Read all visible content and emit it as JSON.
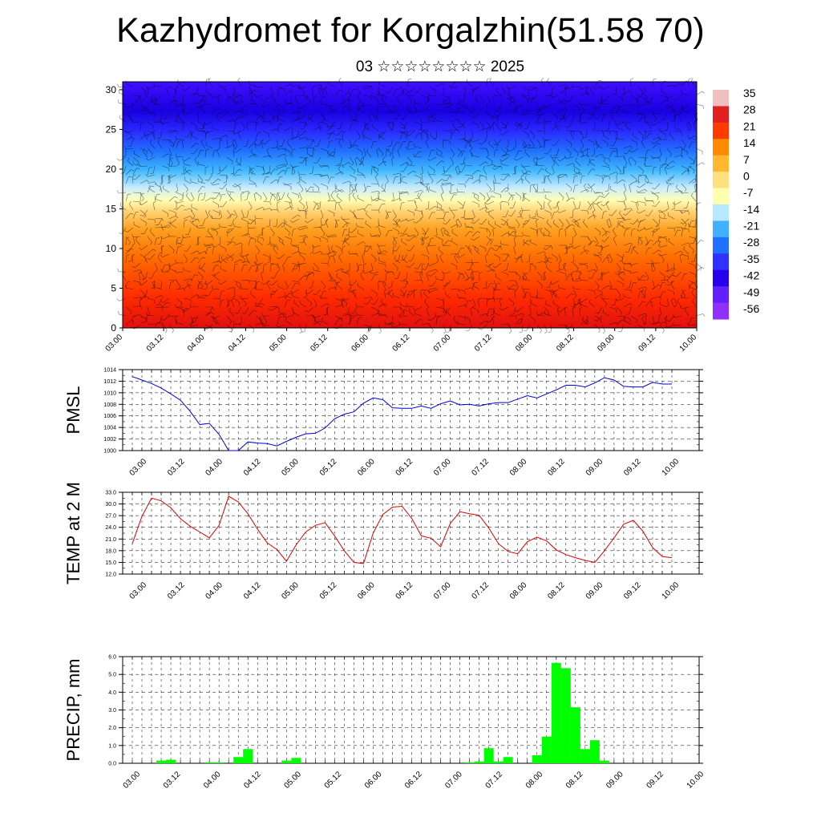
{
  "title": "Kazhydromet for Korgalzhin(51.58 70)",
  "subtitle": "03 ☆☆☆☆☆☆☆☆ 2025",
  "time_ticks": [
    "03.00",
    "03.12",
    "04.00",
    "04.12",
    "05.00",
    "05.12",
    "06.00",
    "06.12",
    "07.00",
    "07.12",
    "08.00",
    "08.12",
    "09.00",
    "09.12",
    "10.00"
  ],
  "chart_data": [
    {
      "type": "heatmap",
      "title": "",
      "xlabel": "",
      "ylabel": "",
      "ylim": [
        0,
        31
      ],
      "yticks": [
        0,
        5,
        10,
        15,
        20,
        25,
        30
      ],
      "colorbar": {
        "labels": [
          "35",
          "28",
          "21",
          "14",
          "7",
          "0",
          "-7",
          "-14",
          "-21",
          "-28",
          "-35",
          "-42",
          "-49",
          "-56"
        ],
        "colors": [
          "#f0c0c0",
          "#e02020",
          "#ff3a00",
          "#ff8a00",
          "#ffb830",
          "#ffe080",
          "#ffffb0",
          "#b8e8ff",
          "#40b0ff",
          "#2070ff",
          "#3030ff",
          "#2800f0",
          "#6020ff",
          "#9030ff"
        ]
      },
      "overlay": "wind barbs"
    },
    {
      "type": "line",
      "ylabel": "PMSL",
      "ylim": [
        1000,
        1014
      ],
      "yticks": [
        "1000",
        "1002",
        "1004",
        "1006",
        "1008",
        "1010",
        "1012",
        "1014"
      ],
      "color": "#0000dd",
      "values": [
        1012.8,
        1012.2,
        1011.6,
        1010.8,
        1009.8,
        1008.7,
        1006.8,
        1004.5,
        1004.7,
        1002.8,
        1000.0,
        1000.0,
        1001.5,
        1001.3,
        1001.2,
        1000.8,
        1001.6,
        1002.3,
        1002.9,
        1003.0,
        1003.9,
        1005.5,
        1006.3,
        1006.7,
        1008.2,
        1009.1,
        1008.8,
        1007.4,
        1007.3,
        1007.3,
        1007.7,
        1007.3,
        1008.1,
        1008.6,
        1007.9,
        1008.0,
        1007.7,
        1008.1,
        1008.3,
        1008.3,
        1008.9,
        1009.5,
        1009.1,
        1009.8,
        1010.5,
        1011.3,
        1011.3,
        1011.0,
        1011.7,
        1012.6,
        1012.2,
        1011.1,
        1011.0,
        1011.0,
        1011.8,
        1011.5,
        1011.5
      ]
    },
    {
      "type": "line",
      "ylabel": "TEMP at 2 M",
      "ylim": [
        12,
        33
      ],
      "yticks": [
        "12.0",
        "15.0",
        "18.0",
        "21.0",
        "24.0",
        "27.0",
        "30.0",
        "33.0"
      ],
      "color": "#dd0000",
      "values": [
        19.8,
        26.8,
        31.5,
        30.8,
        29.0,
        26.2,
        24.3,
        22.8,
        21.3,
        24.5,
        32.0,
        30.5,
        27.5,
        23.5,
        20.0,
        18.3,
        15.3,
        19.5,
        22.8,
        24.5,
        25.2,
        21.8,
        18.0,
        15.0,
        14.7,
        22.5,
        27.3,
        29.2,
        29.4,
        26.3,
        21.8,
        21.2,
        19.0,
        25.0,
        28.0,
        27.5,
        27.1,
        23.8,
        19.8,
        17.8,
        17.2,
        20.3,
        21.5,
        20.5,
        18.2,
        17.0,
        16.2,
        15.5,
        15.0,
        18.0,
        21.3,
        24.8,
        25.8,
        23.0,
        18.8,
        16.5,
        16.2
      ]
    },
    {
      "type": "bar",
      "ylabel": "PRECIP, mm",
      "ylim": [
        0,
        6
      ],
      "yticks": [
        "0.0",
        "1.0",
        "2.0",
        "3.0",
        "4.0",
        "5.0",
        "6.0"
      ],
      "color": "#00ff00",
      "values": [
        0,
        0,
        0,
        0.15,
        0.2,
        0,
        0,
        0,
        0.05,
        0.05,
        0,
        0.35,
        0.8,
        0,
        0,
        0,
        0.15,
        0.3,
        0,
        0,
        0,
        0,
        0,
        0,
        0,
        0,
        0,
        0,
        0,
        0,
        0,
        0,
        0,
        0,
        0,
        0.05,
        0.1,
        0.85,
        0.1,
        0.35,
        0,
        0,
        0.45,
        1.5,
        5.65,
        5.35,
        3.15,
        0.8,
        1.3,
        0.15,
        0,
        0,
        0,
        0,
        0,
        0,
        0
      ]
    }
  ]
}
